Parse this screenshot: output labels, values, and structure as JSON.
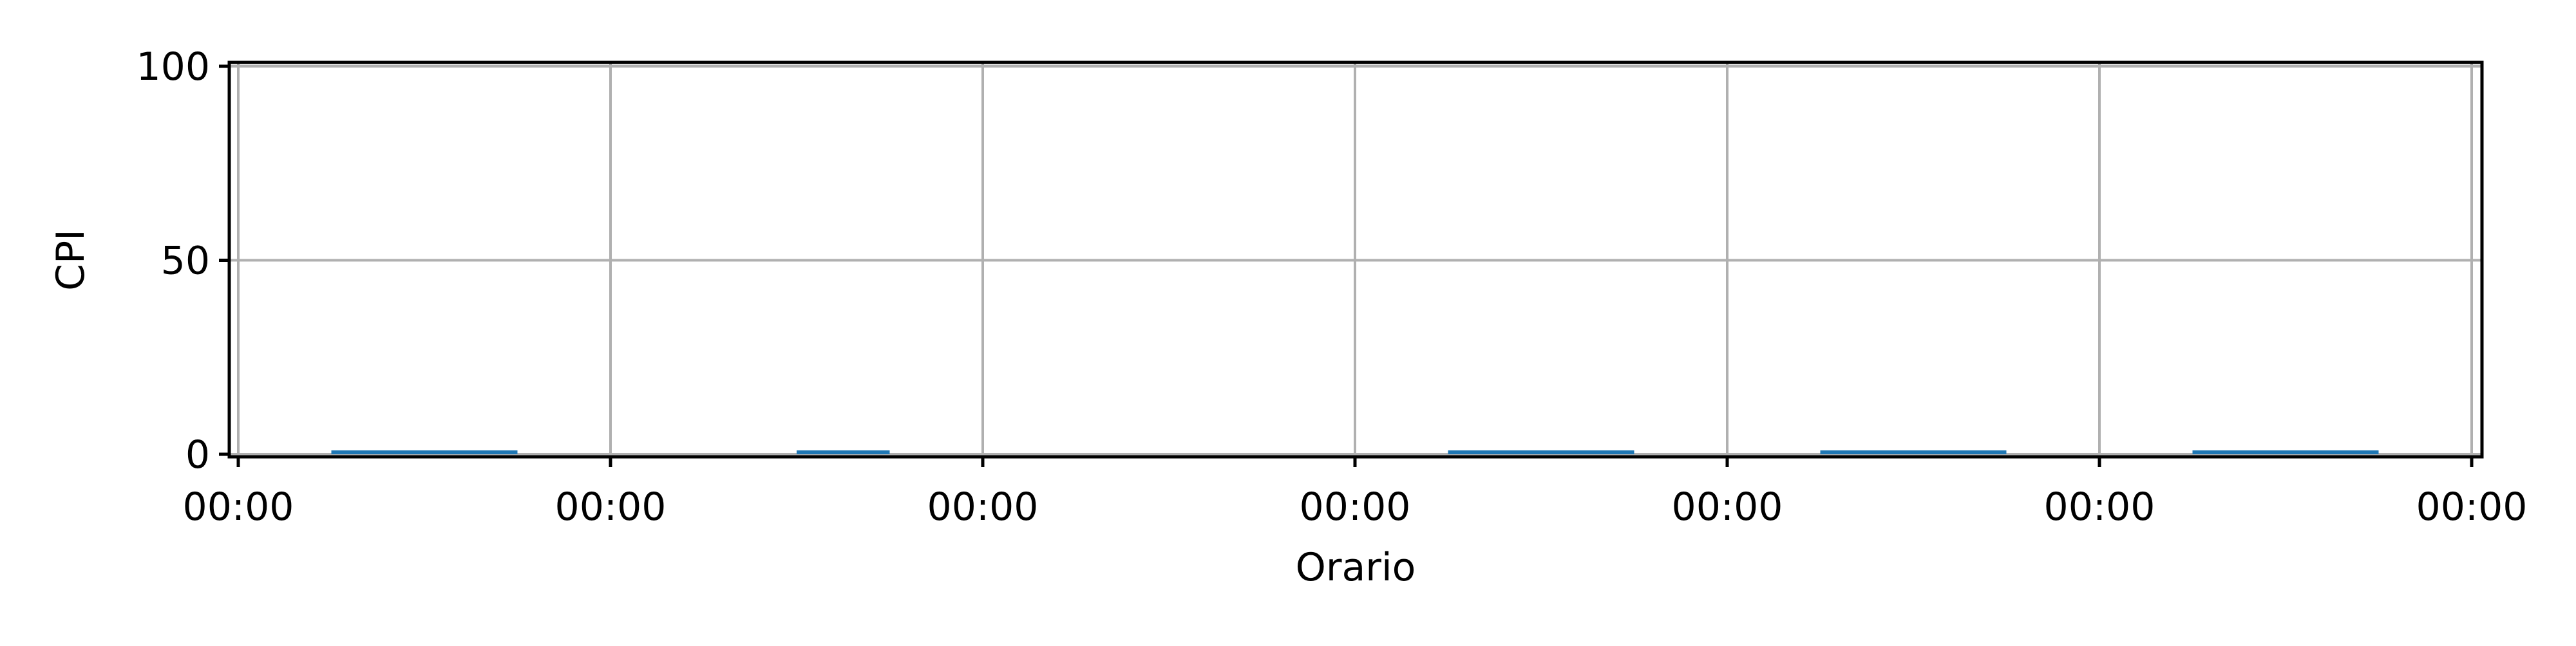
{
  "chart_data": {
    "type": "bar",
    "xlabel": "Orario",
    "ylabel": "CPI",
    "ylim": [
      0,
      100
    ],
    "y_ticks": [
      0,
      50,
      100
    ],
    "x_tick_labels": [
      "00:00",
      "00:00",
      "00:00",
      "00:00",
      "00:00",
      "00:00",
      "00:00"
    ],
    "grid": true,
    "bar_color": "#1f77b4",
    "bars": [
      {
        "start_tick": 0.25,
        "end_tick": 0.75,
        "value": 1
      },
      {
        "start_tick": 1.5,
        "end_tick": 1.75,
        "value": 1
      },
      {
        "start_tick": 3.25,
        "end_tick": 3.75,
        "value": 1
      },
      {
        "start_tick": 4.25,
        "end_tick": 4.75,
        "value": 1
      },
      {
        "start_tick": 5.25,
        "end_tick": 5.75,
        "value": 1
      }
    ]
  }
}
